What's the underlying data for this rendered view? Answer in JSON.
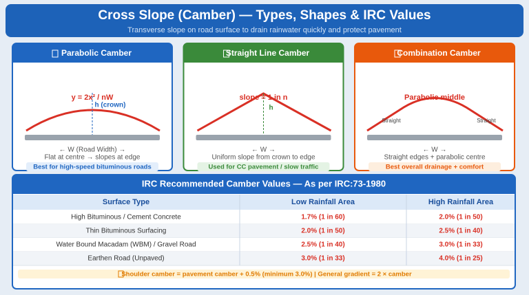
{
  "header": {
    "title": "Cross Slope (Camber) — Types, Shapes & IRC Values",
    "subtitle": "Transverse slope on road surface to drain rainwater quickly and protect pavement"
  },
  "cards": [
    {
      "title": "Parabolic Camber",
      "labels": [
        "y = 2x² / nW",
        "h (crown)"
      ],
      "caption": "← W (Road Width) →",
      "description": "Flat at centre → slopes at edge",
      "note": "Best for high-speed bituminous roads"
    },
    {
      "title": "Straight Line Camber",
      "labels": [
        "slope = 1 in n",
        "h"
      ],
      "caption": "← W →",
      "description": "Uniform slope from crown to edge",
      "note": "Used for CC pavement / slow traffic"
    },
    {
      "title": "Combination Camber",
      "labels": [
        "Parabolic middle",
        "Straight",
        "Straight"
      ],
      "caption": "← W →",
      "description": "Straight edges + parabolic centre",
      "note": "Best overall drainage + comfort"
    }
  ],
  "table": {
    "title": "IRC Recommended Camber Values — As per IRC:73-1980",
    "columns": [
      "Surface Type",
      "Low Rainfall Area",
      "High Rainfall Area"
    ],
    "rows": [
      [
        "High Bituminous / Cement Concrete",
        "1.7% (1 in 60)",
        "2.0% (1 in 50)"
      ],
      [
        "Thin Bituminous Surfacing",
        "2.0% (1 in 50)",
        "2.5% (1 in 40)"
      ],
      [
        "Water Bound Macadam (WBM) / Gravel Road",
        "2.5% (1 in 40)",
        "3.0% (1 in 33)"
      ],
      [
        "Earthen Road (Unpaved)",
        "3.0% (1 in 33)",
        "4.0% (1 in 25)"
      ]
    ],
    "footnote": "Shoulder camber = pavement camber + 0.5% (minimum 3.0%) | General gradient = 2 × camber"
  }
}
